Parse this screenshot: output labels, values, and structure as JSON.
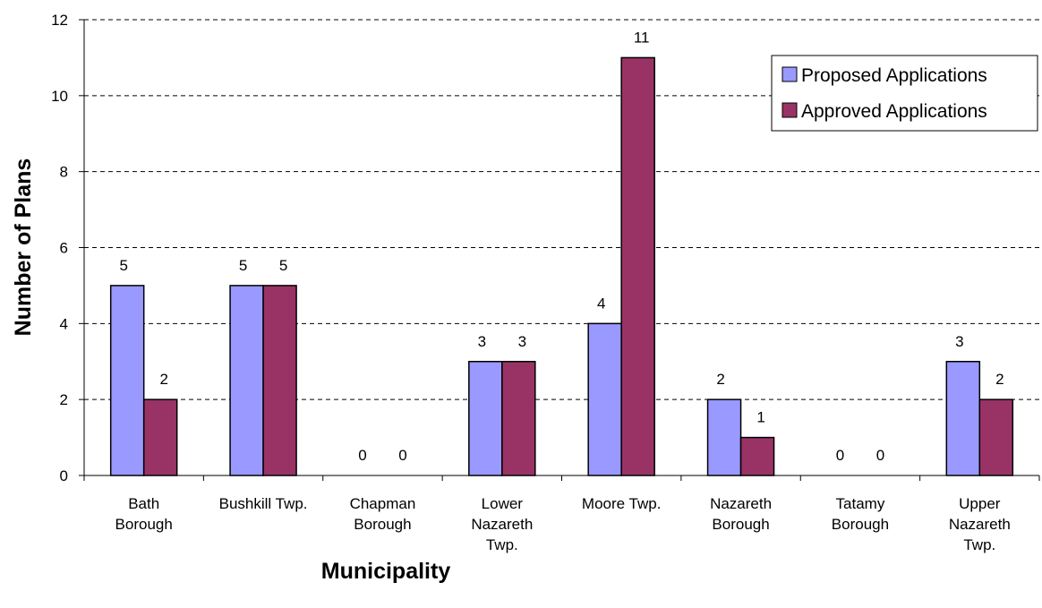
{
  "chart_data": {
    "type": "bar",
    "title": "",
    "xlabel": "Municipality",
    "ylabel": "Number of Plans",
    "ylim": [
      0,
      12
    ],
    "yticks": [
      0,
      2,
      4,
      6,
      8,
      10,
      12
    ],
    "grid": "horizontal-dashed",
    "legend_position": "top-right",
    "categories": [
      [
        "Bath",
        "Borough"
      ],
      [
        "Bushkill Twp."
      ],
      [
        "Chapman",
        "Borough"
      ],
      [
        "Lower",
        "Nazareth",
        "Twp."
      ],
      [
        "Moore Twp."
      ],
      [
        "Nazareth",
        "Borough"
      ],
      [
        "Tatamy",
        "Borough"
      ],
      [
        "Upper",
        "Nazareth",
        "Twp."
      ]
    ],
    "series": [
      {
        "name": "Proposed Applications",
        "color": "#9999ff",
        "values": [
          5,
          5,
          0,
          3,
          4,
          2,
          0,
          3
        ]
      },
      {
        "name": "Approved Applications",
        "color": "#993366",
        "values": [
          2,
          5,
          0,
          3,
          11,
          1,
          0,
          2
        ]
      }
    ]
  }
}
